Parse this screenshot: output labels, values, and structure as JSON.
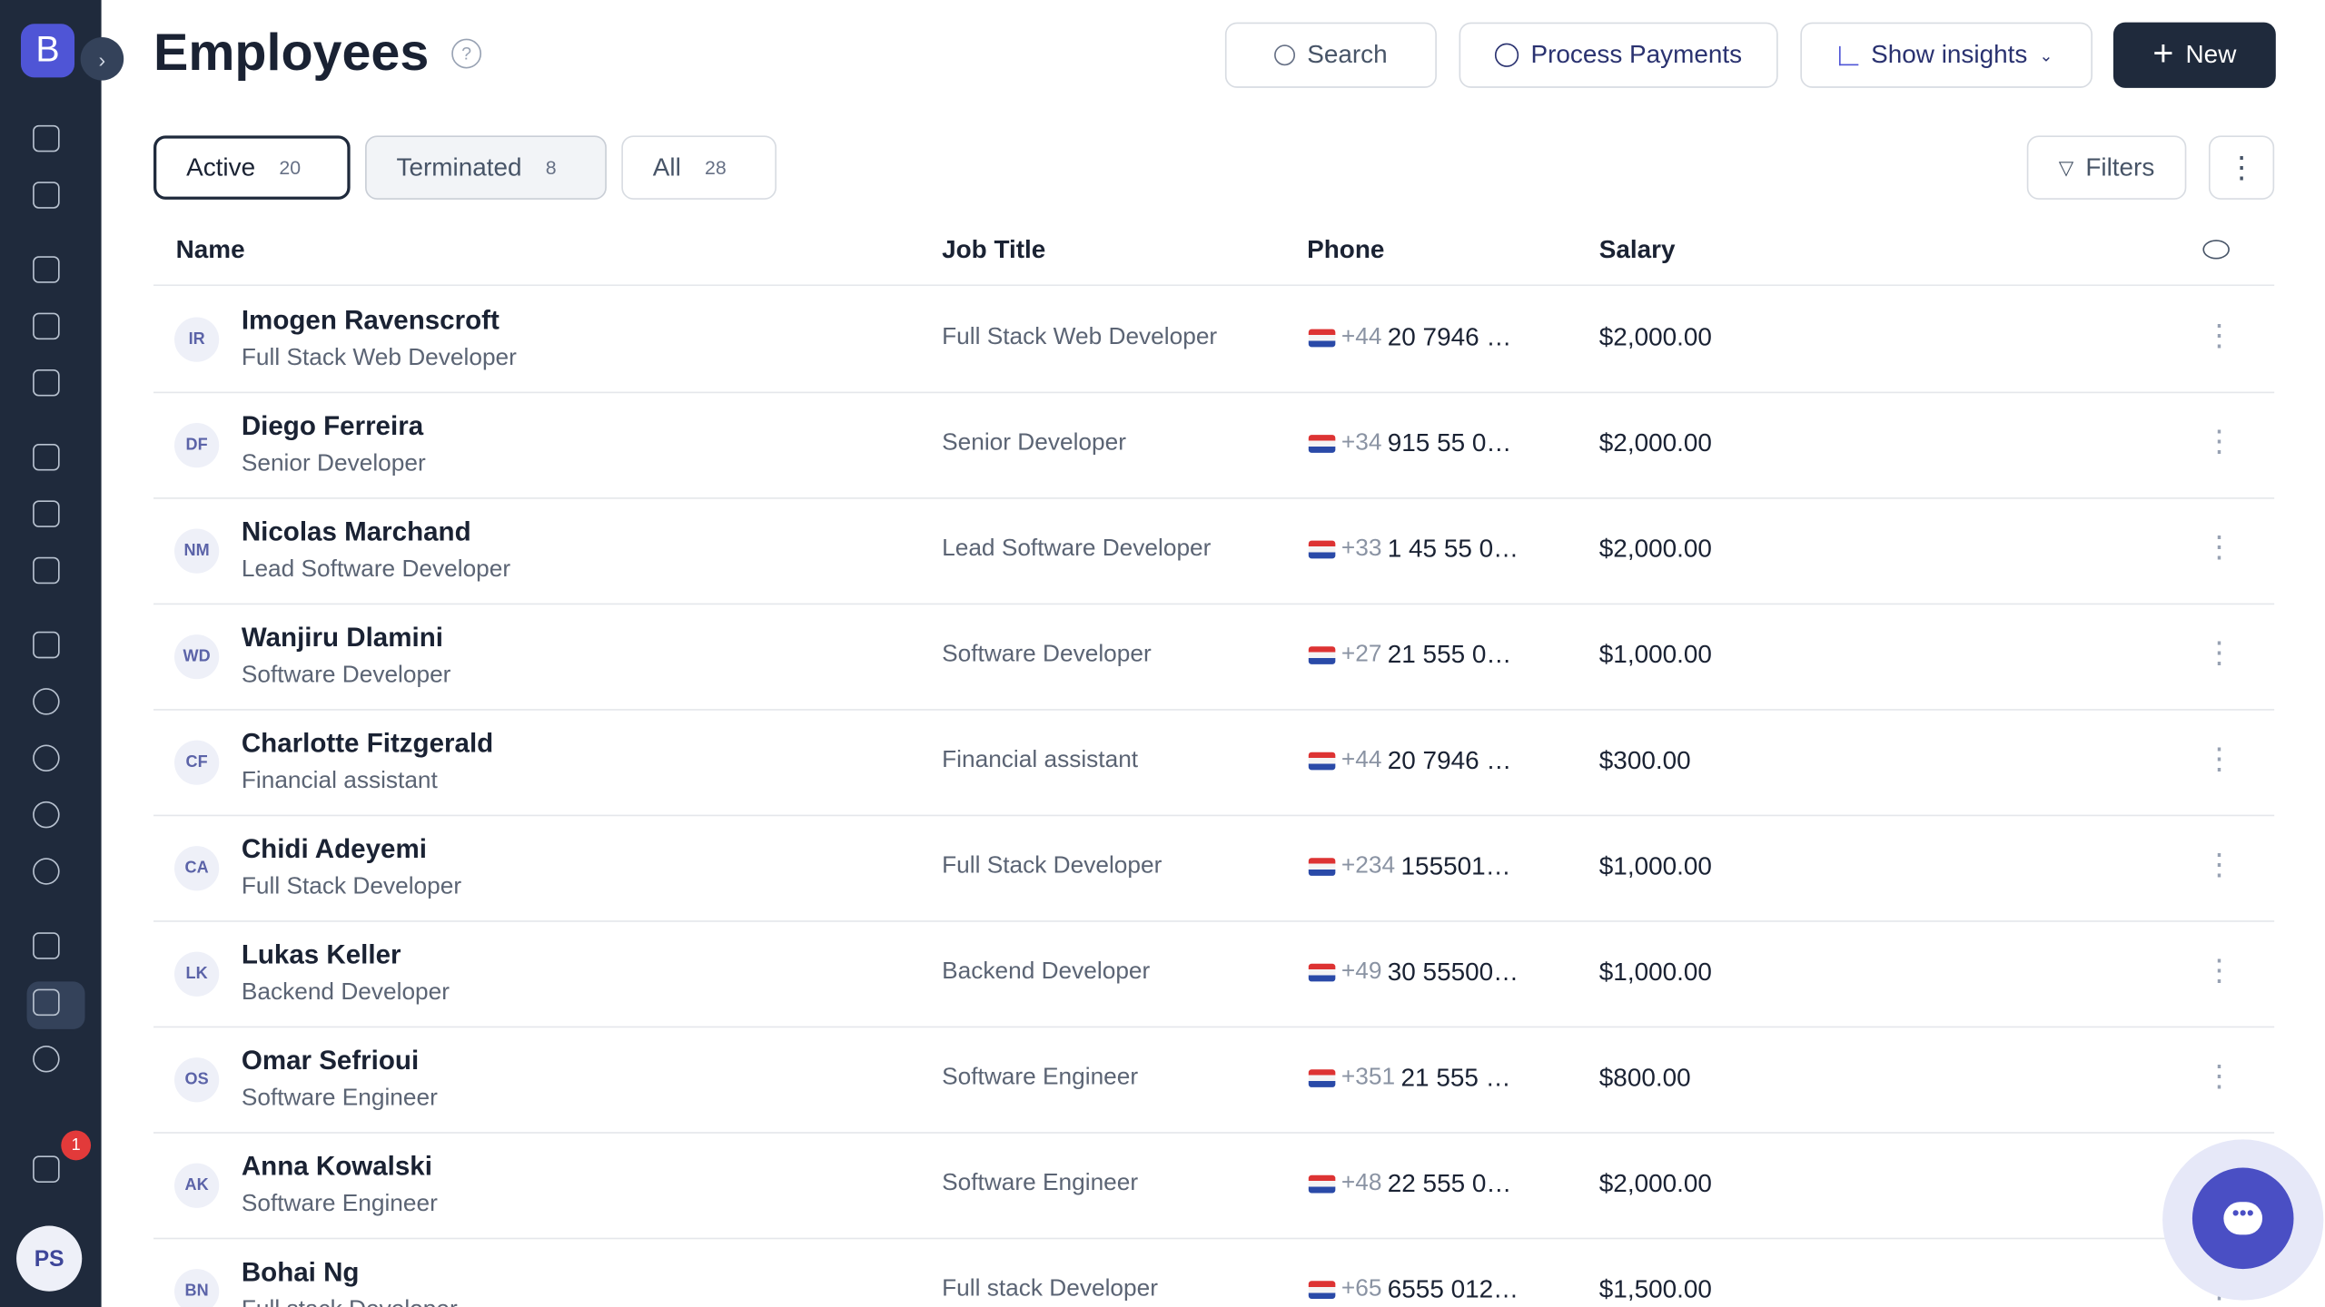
{
  "sidebar": {
    "logo": "B",
    "notification_count": "1",
    "user_initials": "PS"
  },
  "header": {
    "title": "Employees",
    "search": "Search",
    "process_payments": "Process Payments",
    "show_insights": "Show insights",
    "new": "New"
  },
  "tabs": [
    {
      "label": "Active",
      "count": 20
    },
    {
      "label": "Terminated",
      "count": 8
    },
    {
      "label": "All",
      "count": 28
    }
  ],
  "filters": "Filters",
  "table": {
    "columns": [
      "Name",
      "Job Title",
      "Phone",
      "Salary"
    ],
    "rows": [
      {
        "initials": "IR",
        "name": "Imogen Ravenscroft",
        "subtitle": "Full Stack Web Developer",
        "job_title": "Full Stack Web Developer",
        "phone_code": "+44",
        "phone": "20 7946 …",
        "salary": "$2,000.00"
      },
      {
        "initials": "DF",
        "name": "Diego Ferreira",
        "subtitle": "Senior Developer",
        "job_title": "Senior Developer",
        "phone_code": "+34",
        "phone": "915 55 0…",
        "salary": "$2,000.00"
      },
      {
        "initials": "NM",
        "name": "Nicolas Marchand",
        "subtitle": "Lead Software Developer",
        "job_title": "Lead Software Developer",
        "phone_code": "+33",
        "phone": "1 45 55 0…",
        "salary": "$2,000.00"
      },
      {
        "initials": "WD",
        "name": "Wanjiru Dlamini",
        "subtitle": "Software Developer",
        "job_title": "Software Developer",
        "phone_code": "+27",
        "phone": "21 555 0…",
        "salary": "$1,000.00"
      },
      {
        "initials": "CF",
        "name": "Charlotte Fitzgerald",
        "subtitle": "Financial assistant",
        "job_title": "Financial assistant",
        "phone_code": "+44",
        "phone": "20 7946 …",
        "salary": "$300.00"
      },
      {
        "initials": "CA",
        "name": "Chidi Adeyemi",
        "subtitle": "Full Stack Developer",
        "job_title": "Full Stack Developer",
        "phone_code": "+234",
        "phone": "155501…",
        "salary": "$1,000.00"
      },
      {
        "initials": "LK",
        "name": "Lukas Keller",
        "subtitle": "Backend Developer",
        "job_title": "Backend Developer",
        "phone_code": "+49",
        "phone": "30 55500…",
        "salary": "$1,000.00"
      },
      {
        "initials": "OS",
        "name": "Omar Sefrioui",
        "subtitle": "Software Engineer",
        "job_title": "Software Engineer",
        "phone_code": "+351",
        "phone": "21 555 …",
        "salary": "$800.00"
      },
      {
        "initials": "AK",
        "name": "Anna Kowalski",
        "subtitle": "Software Engineer",
        "job_title": "Software Engineer",
        "phone_code": "+48",
        "phone": "22 555 0…",
        "salary": "$2,000.00"
      },
      {
        "initials": "BN",
        "name": "Bohai Ng",
        "subtitle": "Full stack Developer",
        "job_title": "Full stack Developer",
        "phone_code": "+65",
        "phone": "6555 012…",
        "salary": "$1,500.00"
      }
    ]
  }
}
